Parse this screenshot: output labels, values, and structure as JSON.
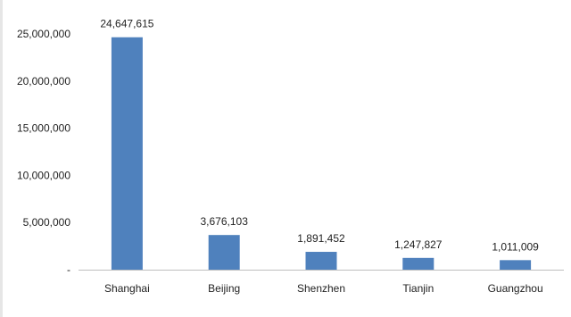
{
  "chart_data": {
    "type": "bar",
    "categories": [
      "Shanghai",
      "Beijing",
      "Shenzhen",
      "Tianjin",
      "Guangzhou"
    ],
    "values": [
      24647615,
      3676103,
      1891452,
      1247827,
      1011009
    ],
    "data_labels": [
      "24,647,615",
      "3,676,103",
      "1,891,452",
      "1,247,827",
      "1,011,009"
    ],
    "y_ticks": [
      0,
      5000000,
      10000000,
      15000000,
      20000000,
      25000000
    ],
    "y_tick_labels": [
      "-",
      "5,000,000",
      "10,000,000",
      "15,000,000",
      "20,000,000",
      "25,000,000"
    ],
    "ylim": [
      0,
      25000000
    ],
    "grid": false,
    "legend": "none",
    "bar_color": "#4f81bd",
    "axis_color": "#bfbfbf",
    "text_color": "#222222"
  }
}
